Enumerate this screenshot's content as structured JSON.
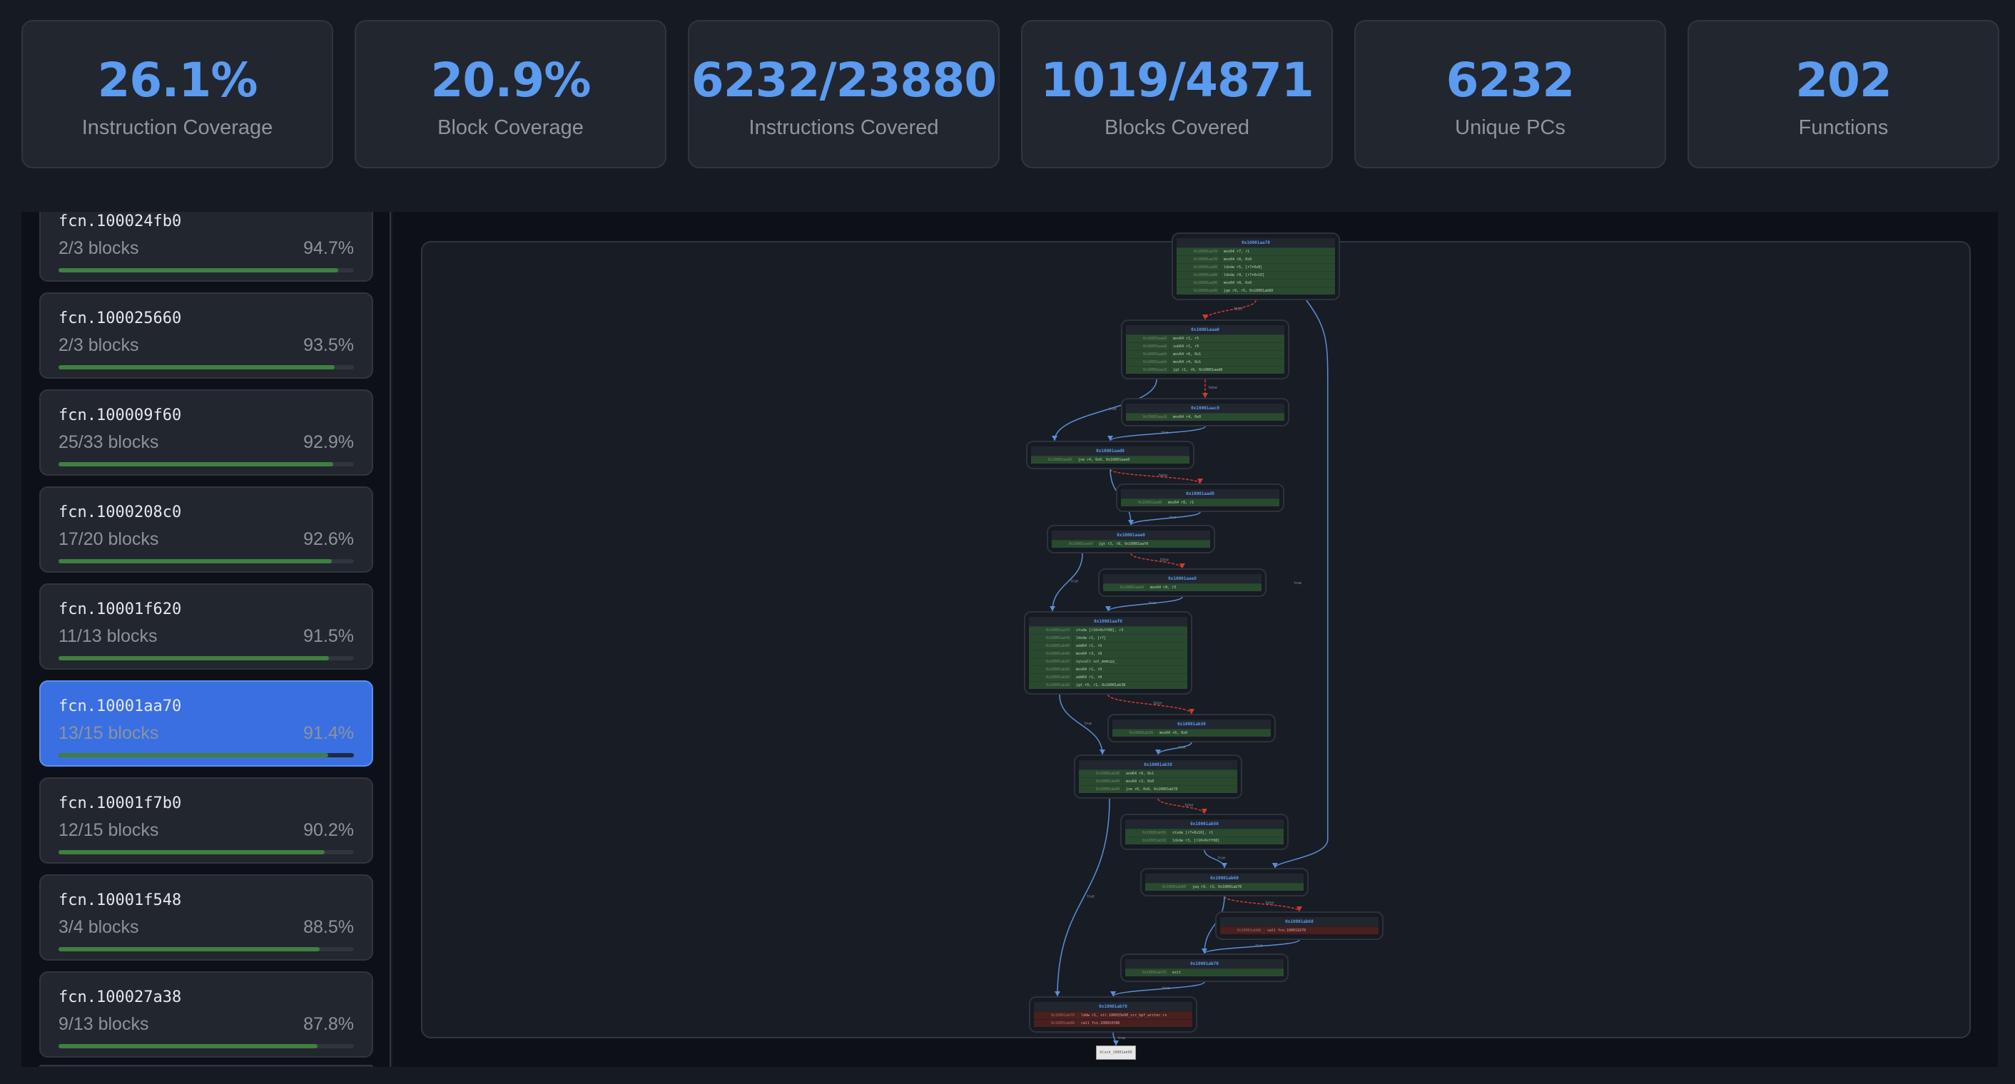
{
  "stats": [
    {
      "value": "26.1%",
      "label": "Instruction Coverage"
    },
    {
      "value": "20.9%",
      "label": "Block Coverage"
    },
    {
      "value": "6232/23880",
      "label": "Instructions Covered"
    },
    {
      "value": "1019/4871",
      "label": "Blocks Covered"
    },
    {
      "value": "6232",
      "label": "Unique PCs"
    },
    {
      "value": "202",
      "label": "Functions"
    }
  ],
  "functions": [
    {
      "name": "fcn.100024fb0",
      "blocks": "2/3 blocks",
      "pct": "94.7%",
      "coverage": 94.7
    },
    {
      "name": "fcn.100025660",
      "blocks": "2/3 blocks",
      "pct": "93.5%",
      "coverage": 93.5
    },
    {
      "name": "fcn.100009f60",
      "blocks": "25/33 blocks",
      "pct": "92.9%",
      "coverage": 92.9
    },
    {
      "name": "fcn.1000208c0",
      "blocks": "17/20 blocks",
      "pct": "92.6%",
      "coverage": 92.6
    },
    {
      "name": "fcn.10001f620",
      "blocks": "11/13 blocks",
      "pct": "91.5%",
      "coverage": 91.5
    },
    {
      "name": "fcn.10001aa70",
      "blocks": "13/15 blocks",
      "pct": "91.4%",
      "coverage": 91.4,
      "selected": true
    },
    {
      "name": "fcn.10001f7b0",
      "blocks": "12/15 blocks",
      "pct": "90.2%",
      "coverage": 90.2
    },
    {
      "name": "fcn.10001f548",
      "blocks": "3/4 blocks",
      "pct": "88.5%",
      "coverage": 88.5
    },
    {
      "name": "fcn.100027a38",
      "blocks": "9/13 blocks",
      "pct": "87.8%",
      "coverage": 87.8
    }
  ],
  "colors": {
    "accent": "#5b9bf0",
    "covered": "#2a4a30",
    "uncovered": "#4a1f1f",
    "true_edge": "#5b8fd8",
    "false_edge": "#d03a30",
    "progress": "#3f8040"
  },
  "graph": {
    "blocks": [
      {
        "id": "0x10001aa70",
        "covered": true,
        "rows": [
          [
            "0x10001aa70",
            "mov64 r7, r1"
          ],
          [
            "0x10001aa78",
            "mov64 r8, 0x0"
          ],
          [
            "0x10001aa80",
            "ldxdw r5, [r7+0x8]"
          ],
          [
            "0x10001aa88",
            "ldxdw r9, [r7+0x10]"
          ],
          [
            "0x10001aa90",
            "mov64 r8, 0x0"
          ],
          [
            "0x10001aa98",
            "jge r9, r5, 0x10001ab60"
          ]
        ]
      },
      {
        "id": "0x10001aaa0",
        "covered": true,
        "rows": [
          [
            "0x10001aaa0",
            "mov64 r1, r5"
          ],
          [
            "0x10001aaa8",
            "sub64 r1, r9"
          ],
          [
            "0x10001aab0",
            "mov64 r6, 0x1"
          ],
          [
            "0x10001aab8",
            "mov64 r4, 0x1"
          ],
          [
            "0x10001aac0",
            "jgt r1, r6, 0x10001aad0"
          ]
        ]
      },
      {
        "id": "0x10001aac8",
        "covered": true,
        "rows": [
          [
            "0x10001aac8",
            "mov64 r4, 0x0"
          ]
        ]
      },
      {
        "id": "0x10001aad0",
        "covered": true,
        "rows": [
          [
            "0x10001aad0",
            "jne r4, 0x0, 0x10001aae0"
          ]
        ]
      },
      {
        "id": "0x10001aad8",
        "covered": true,
        "rows": [
          [
            "0x10001aad8",
            "mov64 r8, r1"
          ]
        ]
      },
      {
        "id": "0x10001aae0",
        "covered": true,
        "rows": [
          [
            "0x10001aae0",
            "jgt r3, r8, 0x10001aaf0"
          ]
        ]
      },
      {
        "id": "0x10001aae8",
        "covered": true,
        "rows": [
          [
            "0x10001aae8",
            "mov64 r8, r3"
          ]
        ]
      },
      {
        "id": "0x10001aaf0",
        "covered": true,
        "rows": [
          [
            "0x10001aaf0",
            "stxdw [r10+0xff08], r3"
          ],
          [
            "0x10001aaf8",
            "ldxdw r1, [r7]"
          ],
          [
            "0x10001ab00",
            "add64 r1, r9"
          ],
          [
            "0x10001ab08",
            "mov64 r3, r8"
          ],
          [
            "0x10001ab10",
            "syscall sol_memcpy_"
          ],
          [
            "0x10001ab18",
            "mov64 r1, r9"
          ],
          [
            "0x10001ab20",
            "add64 r1, r8"
          ],
          [
            "0x10001ab28",
            "jgt r9, r1, 0x10001ab38"
          ]
        ]
      },
      {
        "id": "0x10001ab30",
        "covered": true,
        "rows": [
          [
            "0x10001ab30",
            "mov64 r6, 0x0"
          ]
        ]
      },
      {
        "id": "0x10001ab38",
        "covered": true,
        "rows": [
          [
            "0x10001ab38",
            "and64 r6, 0x1"
          ],
          [
            "0x10001ab40",
            "mov64 r2, 0x0"
          ],
          [
            "0x10001ab48",
            "jne r6, 0x0, 0x10001ab78"
          ]
        ]
      },
      {
        "id": "0x10001ab50",
        "covered": true,
        "rows": [
          [
            "0x10001ab50",
            "stxdw [r7+0x10], r1"
          ],
          [
            "0x10001ab58",
            "ldxdw r3, [r10+0xff08]"
          ]
        ]
      },
      {
        "id": "0x10001ab60",
        "covered": true,
        "rows": [
          [
            "0x10001ab60",
            "jeq r9, r3, 0x10001ab70"
          ]
        ]
      },
      {
        "id": "0x10001ab68",
        "covered": false,
        "rows": [
          [
            "0x10001ab68",
            "call fcn.100019270"
          ]
        ]
      },
      {
        "id": "0x10001ab70",
        "covered": true,
        "rows": [
          [
            "0x10001ab70",
            "exit"
          ]
        ]
      },
      {
        "id": "0x10001ab78",
        "covered": false,
        "rows": [
          [
            "0x10001ab78",
            "lddw r1, str.100033e90_src_bpf_writer.rs"
          ],
          [
            "0x10001ab88",
            "call fcn.100024f88"
          ]
        ]
      }
    ],
    "exit_block": "block_10001ab90",
    "edges": [
      {
        "from": "0x10001aa70",
        "to": "0x10001aaa0",
        "label": "false"
      },
      {
        "from": "0x10001aa70",
        "to": "0x10001ab60",
        "label": "true"
      },
      {
        "from": "0x10001aaa0",
        "to": "0x10001aac8",
        "label": "false"
      },
      {
        "from": "0x10001aaa0",
        "to": "0x10001aad0",
        "label": "true"
      },
      {
        "from": "0x10001aac8",
        "to": "0x10001aad0",
        "label": "true"
      },
      {
        "from": "0x10001aad0",
        "to": "0x10001aad8",
        "label": "false"
      },
      {
        "from": "0x10001aad0",
        "to": "0x10001aae0",
        "label": "true"
      },
      {
        "from": "0x10001aad8",
        "to": "0x10001aae0",
        "label": "true"
      },
      {
        "from": "0x10001aae0",
        "to": "0x10001aae8",
        "label": "false"
      },
      {
        "from": "0x10001aae0",
        "to": "0x10001aaf0",
        "label": "true"
      },
      {
        "from": "0x10001aae8",
        "to": "0x10001aaf0",
        "label": "true"
      },
      {
        "from": "0x10001aaf0",
        "to": "0x10001ab30",
        "label": "false"
      },
      {
        "from": "0x10001aaf0",
        "to": "0x10001ab38",
        "label": "true"
      },
      {
        "from": "0x10001ab30",
        "to": "0x10001ab38",
        "label": "true"
      },
      {
        "from": "0x10001ab38",
        "to": "0x10001ab50",
        "label": "false"
      },
      {
        "from": "0x10001ab38",
        "to": "0x10001ab78",
        "label": "true"
      },
      {
        "from": "0x10001ab50",
        "to": "0x10001ab60",
        "label": "true"
      },
      {
        "from": "0x10001ab60",
        "to": "0x10001ab68",
        "label": "false"
      },
      {
        "from": "0x10001ab60",
        "to": "0x10001ab70",
        "label": "true"
      },
      {
        "from": "0x10001ab68",
        "to": "0x10001ab70",
        "label": "true"
      },
      {
        "from": "0x10001ab70",
        "to": "0x10001ab78",
        "label": "true"
      },
      {
        "from": "0x10001ab78",
        "to": "block_10001ab90",
        "label": "true"
      }
    ]
  }
}
